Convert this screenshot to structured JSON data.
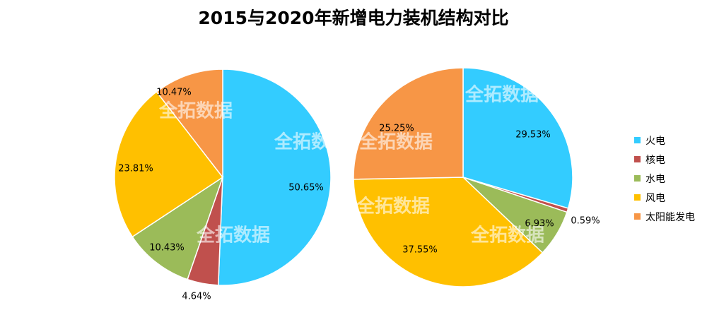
{
  "chart_data": [
    {
      "type": "pie",
      "name": "2015",
      "title": "2015与2020年新增电力装机结构对比",
      "categories": [
        "火电",
        "核电",
        "水电",
        "风电",
        "太阳能发电"
      ],
      "values": [
        50.65,
        4.64,
        10.43,
        23.81,
        10.47
      ],
      "labels": [
        "50.65%",
        "4.64%",
        "10.43%",
        "23.81%",
        "10.47%"
      ]
    },
    {
      "type": "pie",
      "name": "2020",
      "title": "2015与2020年新增电力装机结构对比",
      "categories": [
        "火电",
        "核电",
        "水电",
        "风电",
        "太阳能发电"
      ],
      "values": [
        29.53,
        0.59,
        6.93,
        37.55,
        25.25
      ],
      "labels": [
        "29.53%",
        "0.59%",
        "6.93%",
        "37.55%",
        "25.25%"
      ]
    }
  ],
  "title": "2015与2020年新增电力装机结构对比",
  "legend": {
    "position": "right",
    "items": [
      {
        "label": "火电",
        "color": "#33CCFF"
      },
      {
        "label": "核电",
        "color": "#C0504D"
      },
      {
        "label": "水电",
        "color": "#9BBB59"
      },
      {
        "label": "风电",
        "color": "#FFC000"
      },
      {
        "label": "太阳能发电",
        "color": "#F79646"
      }
    ]
  },
  "watermark": "全拓数据"
}
